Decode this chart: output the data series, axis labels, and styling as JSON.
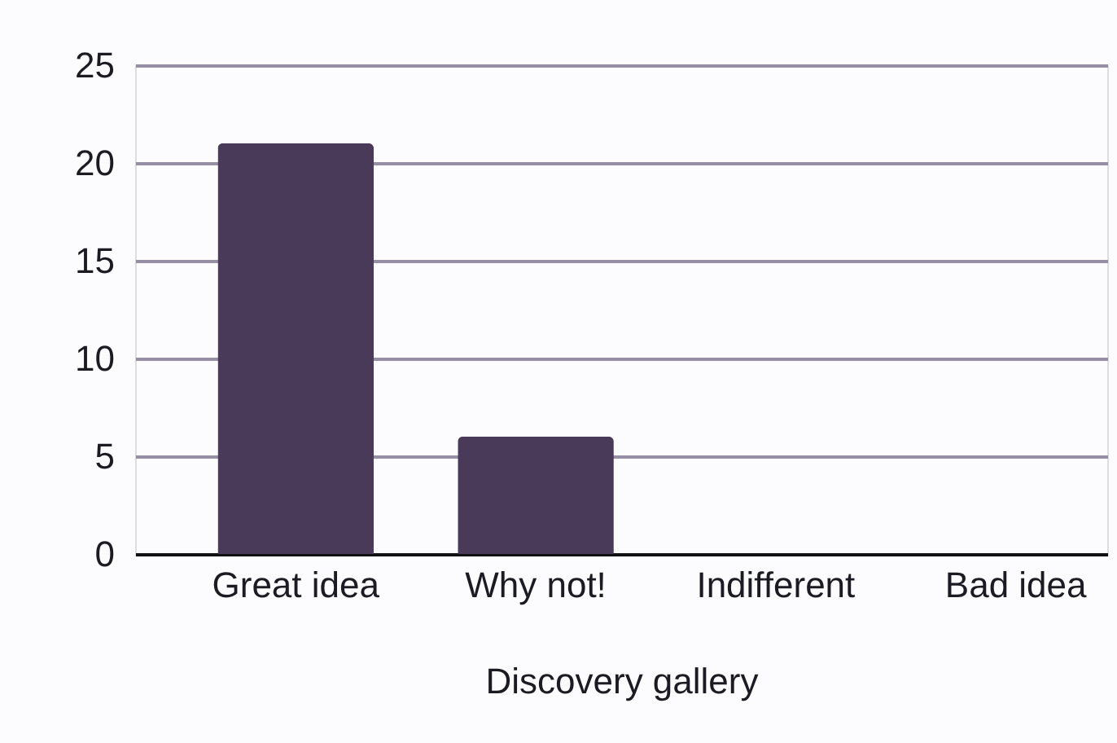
{
  "chart_data": {
    "type": "bar",
    "xlabel": "Discovery gallery",
    "categories": [
      "Great idea",
      "Why not!",
      "Indifferent",
      "Bad idea"
    ],
    "values": [
      21,
      6,
      0,
      0
    ],
    "color": "#4a3a5a",
    "ylim": [
      0,
      25
    ],
    "yticks": [
      0,
      5,
      10,
      15,
      20,
      25
    ],
    "grid": "y"
  }
}
